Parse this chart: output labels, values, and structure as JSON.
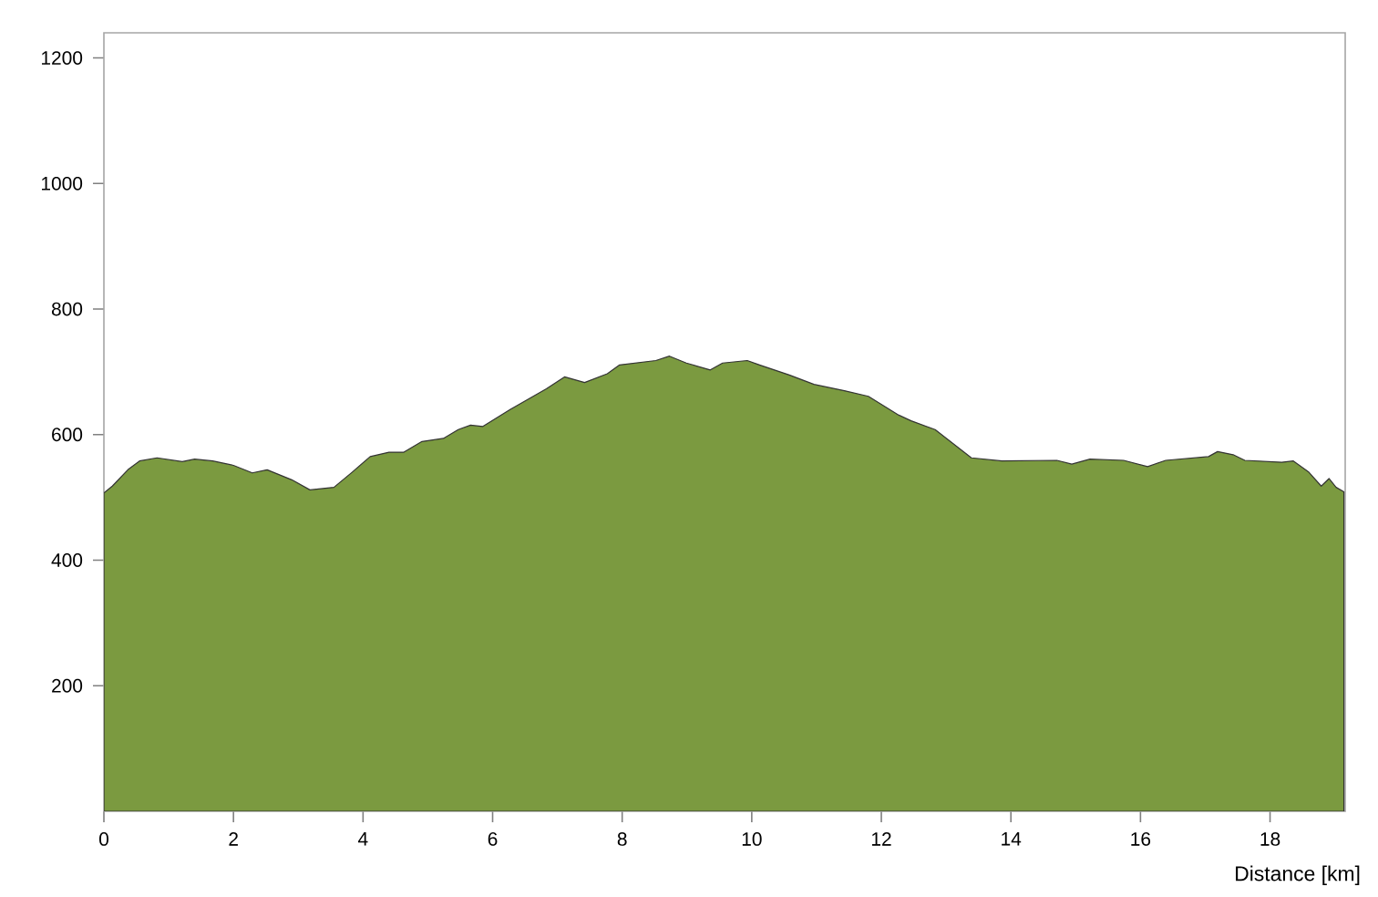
{
  "chart_data": {
    "type": "area",
    "xlabel": "Distance [km]",
    "color": "#7b9a40",
    "x": [
      0,
      0.13,
      0.37,
      0.55,
      0.82,
      1.21,
      1.4,
      1.68,
      2.0,
      2.29,
      2.52,
      2.9,
      3.18,
      3.55,
      3.83,
      4.11,
      4.4,
      4.63,
      4.91,
      5.24,
      5.47,
      5.66,
      5.85,
      6.27,
      6.83,
      7.11,
      7.42,
      7.77,
      7.96,
      8.52,
      8.73,
      8.99,
      9.36,
      9.55,
      9.93,
      10.12,
      10.58,
      10.96,
      11.43,
      11.8,
      12.27,
      12.46,
      12.83,
      13.39,
      13.86,
      14.71,
      14.94,
      15.22,
      15.74,
      16.11,
      16.39,
      17.05,
      17.19,
      17.43,
      17.61,
      18.18,
      18.36,
      18.6,
      18.79,
      18.91,
      19.02,
      19.14
    ],
    "values": [
      507,
      518,
      544,
      558,
      563,
      557,
      561,
      558,
      551,
      539,
      544,
      528,
      512,
      516,
      540,
      565,
      572,
      572,
      589,
      594,
      608,
      615,
      613,
      640,
      673,
      692,
      683,
      697,
      711,
      718,
      725,
      714,
      703,
      714,
      718,
      711,
      695,
      680,
      670,
      661,
      631,
      622,
      608,
      563,
      558,
      559,
      553,
      561,
      559,
      549,
      559,
      565,
      573,
      568,
      559,
      556,
      558,
      540,
      518,
      530,
      516,
      509
    ],
    "xlim": [
      0,
      19.16
    ],
    "ylim": [
      0,
      1240
    ],
    "xticks": [
      0,
      2,
      4,
      6,
      8,
      10,
      12,
      14,
      16,
      18
    ],
    "yticks": [
      200,
      400,
      600,
      800,
      1000,
      1200
    ],
    "grid": false
  }
}
